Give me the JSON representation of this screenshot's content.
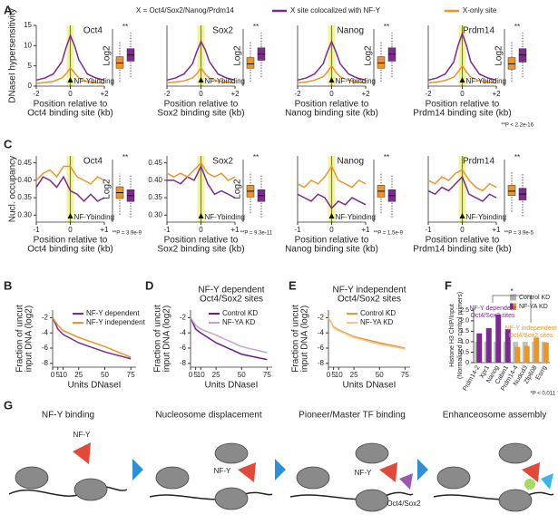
{
  "panels": [
    "A",
    "C",
    "B",
    "D",
    "E",
    "F",
    "G"
  ],
  "chart_data": [
    {
      "type": "line",
      "title": "Oct4",
      "legend": "top",
      "legend_title": "X = Oct4/Sox2/Nanog/Prdm14",
      "ylabel": [
        "DNaseI hypersensitivity"
      ],
      "xlabel": [
        "Position relative to",
        "Oct4 binding site (kb)"
      ],
      "annotation": "NF-Ybinding",
      "highlight_zero": true,
      "x": [
        -2,
        -1.5,
        -1,
        -0.5,
        -0.25,
        0,
        0.25,
        0.5,
        1,
        1.5,
        2
      ],
      "xlim": [
        -2,
        2
      ],
      "xticks": [
        -2,
        0,
        {
          "value": 2,
          "label": "+2"
        }
      ],
      "ylim": [
        0,
        15
      ],
      "yticks": [
        0,
        5,
        10,
        15
      ],
      "series": [
        {
          "name": "X site colocalized with NF-Y",
          "color": "#7b2a8e",
          "values": [
            1.5,
            2,
            3,
            6,
            9.5,
            12.5,
            10,
            6.5,
            3,
            2,
            1.5
          ]
        },
        {
          "name": "X-only site",
          "color": "#e8962a",
          "values": [
            0.7,
            0.9,
            1.2,
            2,
            3,
            4.5,
            3.3,
            2,
            1.1,
            0.9,
            0.7
          ]
        }
      ],
      "boxes": {
        "ylabel": "Log2",
        "sig": "**",
        "ylim": [
          -1,
          5
        ],
        "series": [
          {
            "color": "#e8962a",
            "box": [
              -0.5,
              1,
              1.6,
              2.3,
              4
            ]
          },
          {
            "color": "#7b2a8e",
            "box": [
              0,
              1.8,
              2.5,
              3.2,
              5
            ]
          }
        ]
      }
    },
    {
      "type": "line",
      "title": "Sox2",
      "xlabel": [
        "Position relative to",
        "Sox2 binding site (kb)"
      ],
      "annotation": "NF-Ybinding",
      "highlight_zero": true,
      "x": [
        -2,
        -1.5,
        -1,
        -0.5,
        -0.25,
        0,
        0.25,
        0.5,
        1,
        1.5,
        2
      ],
      "xlim": [
        -2,
        2
      ],
      "xticks": [
        -2,
        0,
        {
          "value": 2,
          "label": "+2"
        }
      ],
      "ylim": [
        0,
        15
      ],
      "series": [
        {
          "color": "#7b2a8e",
          "values": [
            1.5,
            2,
            3,
            5.5,
            8.5,
            11,
            9,
            6,
            3,
            2,
            1.5
          ]
        },
        {
          "color": "#e8962a",
          "values": [
            0.8,
            1,
            1.3,
            2,
            3,
            4.5,
            3,
            2,
            1.2,
            1,
            0.8
          ]
        }
      ],
      "boxes": {
        "ylabel": "Log2",
        "sig": "**",
        "ylim": [
          -1,
          5
        ],
        "series": [
          {
            "color": "#e8962a",
            "box": [
              -0.5,
              1,
              1.5,
              2.2,
              4
            ]
          },
          {
            "color": "#7b2a8e",
            "box": [
              0,
              1.9,
              2.6,
              3.3,
              5
            ]
          }
        ]
      }
    },
    {
      "type": "line",
      "title": "Nanog",
      "xlabel": [
        "Position relative to",
        "Nanog binding site (kb)"
      ],
      "annotation": "NF-Ybinding",
      "highlight_zero": true,
      "x": [
        -2,
        -1.5,
        -1,
        -0.5,
        -0.25,
        0,
        0.25,
        0.5,
        1,
        1.5,
        2
      ],
      "xlim": [
        -2,
        2
      ],
      "xticks": [
        -2,
        0,
        {
          "value": 2,
          "label": "+2"
        }
      ],
      "ylim": [
        0,
        15
      ],
      "series": [
        {
          "color": "#7b2a8e",
          "values": [
            1.5,
            2,
            3,
            5.5,
            8.5,
            11,
            8.5,
            5.5,
            3,
            2,
            1.5
          ]
        },
        {
          "color": "#e8962a",
          "values": [
            0.8,
            1,
            1.5,
            2.3,
            3.5,
            5,
            3.5,
            2.3,
            1.4,
            1,
            0.8
          ]
        }
      ],
      "boxes": {
        "ylabel": "Log2",
        "sig": "**",
        "ylim": [
          -1,
          5
        ],
        "series": [
          {
            "color": "#e8962a",
            "box": [
              -0.5,
              1,
              1.6,
              2.3,
              4
            ]
          },
          {
            "color": "#7b2a8e",
            "box": [
              0,
              1.8,
              2.6,
              3.3,
              5
            ]
          }
        ]
      }
    },
    {
      "type": "line",
      "title": "Prdm14",
      "xlabel": [
        "Position relative to",
        "Prdm14 binding site (kb)"
      ],
      "annotation": "NF-Ybinding",
      "highlight_zero": true,
      "x": [
        -2,
        -1.5,
        -1,
        -0.5,
        -0.25,
        0,
        0.25,
        0.5,
        1,
        1.5,
        2
      ],
      "xlim": [
        -2,
        2
      ],
      "xticks": [
        -2,
        0,
        {
          "value": 2,
          "label": "+2"
        }
      ],
      "ylim": [
        0,
        15
      ],
      "series": [
        {
          "color": "#7b2a8e",
          "values": [
            1.5,
            2,
            3,
            6,
            10,
            13,
            10,
            6,
            3,
            2,
            1.5
          ]
        },
        {
          "color": "#e8962a",
          "values": [
            0.8,
            1,
            1.4,
            2.2,
            3.5,
            5,
            3.5,
            2.2,
            1.3,
            1,
            0.8
          ]
        }
      ],
      "boxes": {
        "ylabel": "Log2",
        "sig": "**",
        "p_label": "**P < 2.2e-16",
        "ylim": [
          -1,
          5
        ],
        "series": [
          {
            "color": "#e8962a",
            "box": [
              -0.5,
              0.9,
              1.5,
              2.2,
              4
            ]
          },
          {
            "color": "#7b2a8e",
            "box": [
              0,
              1.7,
              2.5,
              3.2,
              5
            ]
          }
        ]
      }
    },
    {
      "type": "line",
      "title": "Oct4",
      "ylabel": [
        "Nucl. occupancy"
      ],
      "xlabel": [
        "Position relative to",
        "Oct4 binding site (kb)"
      ],
      "annotation": "NF-Ybinding",
      "highlight_zero": true,
      "x": [
        -1,
        -0.8,
        -0.6,
        -0.4,
        -0.2,
        0,
        0.2,
        0.4,
        0.6,
        0.8,
        1
      ],
      "xlim": [
        -1,
        1
      ],
      "xticks": [
        -1,
        0,
        {
          "value": 1,
          "label": "+1"
        }
      ],
      "ylim": [
        0.28,
        0.47
      ],
      "yticks": [
        {
          "value": 0.3,
          "label": "0.30"
        },
        0.35,
        {
          "value": 0.4,
          "label": "0.40"
        },
        0.45
      ],
      "series": [
        {
          "color": "#7b2a8e",
          "values": [
            0.38,
            0.41,
            0.4,
            0.38,
            0.41,
            0.37,
            0.36,
            0.34,
            0.36,
            0.34,
            0.35
          ]
        },
        {
          "color": "#e8962a",
          "values": [
            0.4,
            0.42,
            0.43,
            0.41,
            0.44,
            0.44,
            0.41,
            0.4,
            0.39,
            0.41,
            0.4
          ]
        }
      ],
      "boxes": {
        "ylabel": "Log2",
        "sig": "**",
        "p_label": "**P = 3.9e-9",
        "ylim": [
          -3,
          1
        ],
        "series": [
          {
            "color": "#e8962a",
            "box": [
              -2.5,
              -1.4,
              -1,
              -0.6,
              0.3
            ]
          },
          {
            "color": "#7b2a8e",
            "box": [
              -2.7,
              -1.6,
              -1.2,
              -0.8,
              0.2
            ]
          }
        ]
      }
    },
    {
      "type": "line",
      "title": "Sox2",
      "xlabel": [
        "Position relative to",
        "Sox2 binding site (kb)"
      ],
      "annotation": "NF-Ybinding",
      "highlight_zero": true,
      "x": [
        -1,
        -0.8,
        -0.6,
        -0.4,
        -0.2,
        0,
        0.2,
        0.4,
        0.6,
        0.8,
        1
      ],
      "xlim": [
        -1,
        1
      ],
      "xticks": [
        -1,
        0,
        {
          "value": 1,
          "label": "+1"
        }
      ],
      "ylim": [
        0.28,
        0.47
      ],
      "yticks": [
        {
          "value": 0.3,
          "label": "0.30"
        },
        0.35,
        {
          "value": 0.4,
          "label": "0.40"
        },
        0.45
      ],
      "series": [
        {
          "color": "#7b2a8e",
          "values": [
            0.4,
            0.4,
            0.39,
            0.41,
            0.4,
            0.44,
            0.39,
            0.36,
            0.37,
            0.36,
            0.35
          ]
        },
        {
          "color": "#e8962a",
          "values": [
            0.42,
            0.41,
            0.42,
            0.41,
            0.43,
            0.45,
            0.42,
            0.41,
            0.42,
            0.4,
            0.41
          ]
        }
      ],
      "boxes": {
        "ylabel": "Log2",
        "sig": "**",
        "p_label": "**P = 9.3e-11",
        "ylim": [
          -3,
          1
        ],
        "series": [
          {
            "color": "#e8962a",
            "box": [
              -2.4,
              -1.3,
              -0.9,
              -0.5,
              0.4
            ]
          },
          {
            "color": "#7b2a8e",
            "box": [
              -2.7,
              -1.6,
              -1.2,
              -0.8,
              0.2
            ]
          }
        ]
      }
    },
    {
      "type": "line",
      "title": "Nanog",
      "xlabel": [
        "Position relative to",
        "Nanog binding site (kb)"
      ],
      "annotation": "NF-Ybinding",
      "highlight_zero": true,
      "x": [
        -1,
        -0.8,
        -0.6,
        -0.4,
        -0.2,
        0,
        0.2,
        0.4,
        0.6,
        0.8,
        1
      ],
      "xlim": [
        -1,
        1
      ],
      "xticks": [
        -1,
        0,
        {
          "value": 1,
          "label": "+1"
        }
      ],
      "ylim": [
        0.28,
        0.47
      ],
      "series": [
        {
          "color": "#7b2a8e",
          "values": [
            0.36,
            0.35,
            0.34,
            0.36,
            0.35,
            0.32,
            0.34,
            0.33,
            0.35,
            0.34,
            0.33
          ]
        },
        {
          "color": "#e8962a",
          "values": [
            0.39,
            0.38,
            0.4,
            0.39,
            0.41,
            0.44,
            0.4,
            0.39,
            0.38,
            0.4,
            0.39
          ]
        }
      ],
      "boxes": {
        "sig": "**",
        "p_label": "**P = 1.5e-9",
        "ylim": [
          -3,
          1
        ],
        "series": [
          {
            "color": "#e8962a",
            "box": [
              -2.4,
              -1.3,
              -0.9,
              -0.5,
              0.4
            ]
          },
          {
            "color": "#7b2a8e",
            "box": [
              -2.7,
              -1.6,
              -1.2,
              -0.8,
              0.2
            ]
          }
        ]
      }
    },
    {
      "type": "line",
      "title": "Prdm14",
      "xlabel": [
        "Position relative to",
        "Prdm14 binding site (kb)"
      ],
      "annotation": "NF-Ybinding",
      "highlight_zero": true,
      "x": [
        -1,
        -0.8,
        -0.6,
        -0.4,
        -0.2,
        0,
        0.2,
        0.4,
        0.6,
        0.8,
        1
      ],
      "xlim": [
        -1,
        1
      ],
      "xticks": [
        -1,
        0,
        {
          "value": 1,
          "label": "+1"
        }
      ],
      "ylim": [
        0.28,
        0.47
      ],
      "series": [
        {
          "color": "#7b2a8e",
          "values": [
            0.37,
            0.36,
            0.38,
            0.37,
            0.39,
            0.41,
            0.36,
            0.35,
            0.34,
            0.36,
            0.35
          ]
        },
        {
          "color": "#e8962a",
          "values": [
            0.4,
            0.39,
            0.41,
            0.4,
            0.42,
            0.43,
            0.4,
            0.38,
            0.37,
            0.39,
            0.38
          ]
        }
      ],
      "boxes": {
        "sig": "**",
        "p_label": "**P = 3.9e-5",
        "ylim": [
          -3,
          1
        ],
        "series": [
          {
            "color": "#e8962a",
            "box": [
              -2.3,
              -1.2,
              -0.9,
              -0.5,
              0.4
            ]
          },
          {
            "color": "#7b2a8e",
            "box": [
              -2.6,
              -1.5,
              -1.1,
              -0.7,
              0.3
            ]
          }
        ]
      }
    },
    {
      "type": "line",
      "legend": "upper right",
      "ylabel": [
        "Fraction of uncut",
        "input DNA (log2)"
      ],
      "xlabel": [
        "Units DNaseI"
      ],
      "x": [
        0,
        5,
        10,
        25,
        50,
        75
      ],
      "xlim": [
        0,
        80
      ],
      "xticks": [
        0,
        5,
        10,
        25,
        50,
        75
      ],
      "ylim": [
        -8.5,
        -1
      ],
      "yticks": [
        -2,
        -4,
        -6,
        -8
      ],
      "series": [
        {
          "name": "NF-Y dependent",
          "color": "#7b2a8e",
          "values": [
            -2,
            -3.5,
            -4.2,
            -5.3,
            -6.5,
            -7.4
          ]
        },
        {
          "name": "NF-Y independent",
          "color": "#e8962a",
          "values": [
            -2,
            -3,
            -3.7,
            -4.6,
            -5.8,
            -7.2
          ]
        }
      ]
    },
    {
      "type": "line",
      "legend": "upper right",
      "title_lines": [
        "NF-Y dependent",
        "Oct4/Sox2 sites"
      ],
      "ylabel": [
        "Fraction of uncut",
        "input DNA (log2)"
      ],
      "xlabel": [
        "Units DNaseI"
      ],
      "x": [
        0,
        5,
        10,
        25,
        50,
        75
      ],
      "xlim": [
        0,
        80
      ],
      "xticks": [
        0,
        5,
        10,
        25,
        50,
        75
      ],
      "ylim": [
        -8.5,
        -1
      ],
      "yticks": [
        -2,
        -4,
        -6,
        -8
      ],
      "series": [
        {
          "name": "Control KD",
          "color": "#6a1f7e",
          "values": [
            -2,
            -3.5,
            -4,
            -5.3,
            -6.8,
            -7.5
          ]
        },
        {
          "name": "NF-YA KD",
          "color": "#c9a0d0",
          "values": [
            -2,
            -3,
            -3.5,
            -4.3,
            -5.8,
            -6.6
          ]
        }
      ]
    },
    {
      "type": "line",
      "legend": "upper right",
      "title_lines": [
        "NF-Y independent",
        "Oct4/Sox2 sites"
      ],
      "ylabel": [
        "Fraction of uncut",
        "input DNA (log2)"
      ],
      "xlabel": [
        "Units DNaseI"
      ],
      "x": [
        0,
        5,
        10,
        25,
        50,
        75
      ],
      "xlim": [
        0,
        80
      ],
      "xticks": [
        0,
        5,
        10,
        25,
        50,
        75
      ],
      "ylim": [
        -8.5,
        -1
      ],
      "yticks": [
        -2,
        -4,
        -6,
        -8
      ],
      "series": [
        {
          "name": "Control KD",
          "color": "#e8962a",
          "values": [
            -2,
            -3.2,
            -3.6,
            -4.5,
            -5.3,
            -6
          ]
        },
        {
          "name": "NF-YA KD",
          "color": "#f5c48a",
          "values": [
            -2,
            -3.3,
            -3.7,
            -4.6,
            -5.5,
            -6.1
          ]
        }
      ]
    },
    {
      "type": "bar",
      "ylabel": [
        "Histone H3 ChIP/Input",
        "(Normalized to control primers)"
      ],
      "categories": [
        "Prdm14-2",
        "Xpr1",
        "Nanog",
        "Cabin1",
        "Prdm14-4",
        "Nudcd3",
        "Zfp608",
        "Esrrg"
      ],
      "ylim": [
        0,
        2.6
      ],
      "yticks": [
        0,
        0.5,
        {
          "value": 1,
          "label": "1.0"
        },
        1.5,
        {
          "value": 2,
          "label": "2.0"
        },
        2.5
      ],
      "series": [
        {
          "name": "Control KD",
          "color": "#b0b0b0",
          "values": [
            1,
            1,
            1,
            1,
            1,
            1,
            1,
            1
          ]
        },
        {
          "name": "NF-YA KD",
          "colors": [
            "#7b2a8e",
            "#7b2a8e",
            "#7b2a8e",
            "#7b2a8e",
            "#e8962a",
            "#e8962a",
            "#e8962a",
            "#e8962a"
          ],
          "values": [
            1.4,
            1.65,
            2.3,
            1.6,
            0.75,
            0.8,
            1.2,
            0.95
          ]
        }
      ],
      "groups": [
        {
          "label": [
            "NF-Y dependent",
            "Oct4/Sox2 sites"
          ],
          "color": "#7b2a8e"
        },
        {
          "label": [
            "NF-Y independent",
            "Oct4/Sox2 sites"
          ],
          "color": "#e8962a"
        }
      ],
      "sig": "*",
      "p_label": "*P < 0.011"
    }
  ],
  "diagram": {
    "stages": [
      "NF-Y binding",
      "Nucleosome displacement",
      "Pioneer/Master TF binding",
      "Enhanceosome assembly"
    ],
    "labels": [
      "NF-Y",
      "NF-Y",
      "NF-Y",
      "Oct4/Sox2"
    ]
  }
}
